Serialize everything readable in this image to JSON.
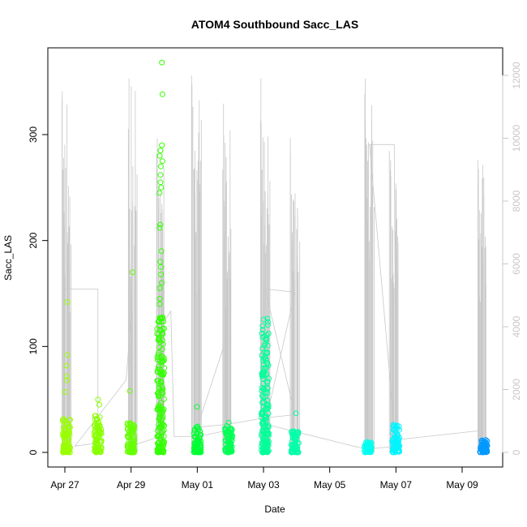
{
  "chart_data": {
    "type": "scatter",
    "title": "ATOM4 Southbound Sacc_LAS",
    "xlabel": "Date",
    "ylabel": "Sacc_LAS",
    "x_ticks": [
      "Apr 27",
      "Apr 29",
      "May 01",
      "May 03",
      "May 05",
      "May 07",
      "May 09"
    ],
    "y_ticks": [
      0,
      100,
      200,
      300
    ],
    "y2_ticks": [
      0,
      2000,
      4000,
      6000,
      8000,
      10000,
      12000
    ],
    "xlim": [
      "2023-04-26",
      "2023-05-10"
    ],
    "ylim": [
      0,
      375
    ],
    "y2lim": [
      0,
      12500
    ],
    "grid": false,
    "colors": {
      "line": "#c8c8c8",
      "right_axis": "#c8c8c8",
      "clusters": [
        "#99ff00",
        "#7cff00",
        "#33ff00",
        "#00ff33",
        "#00ff99",
        "#00ff99",
        "#00ffee",
        "#00ffee",
        "#0099ff"
      ]
    },
    "series": [
      {
        "kind": "points",
        "axis": "left",
        "clusters": [
          {
            "day": 27.05,
            "color": "#99ff00",
            "max": 32,
            "outliers": [
              142,
              92,
              82,
              72,
              68,
              57
            ]
          },
          {
            "day": 28.0,
            "color": "#88ff00",
            "max": 36,
            "outliers": [
              50,
              45
            ]
          },
          {
            "day": 29.0,
            "color": "#66ff00",
            "max": 28,
            "outliers": [
              170,
              58
            ]
          },
          {
            "day": 29.9,
            "color": "#33ff00",
            "max": 130,
            "outliers": [
              368,
              338,
              290,
              285,
              280,
              275,
              270,
              262,
              255,
              250,
              245,
              215,
              212,
              190,
              180,
              175,
              168,
              160,
              155,
              145,
              140
            ]
          },
          {
            "day": 31.0,
            "color": "#00ff33",
            "max": 25,
            "outliers": [
              43
            ]
          },
          {
            "day": 31.95,
            "color": "#00ff55",
            "max": 25,
            "outliers": [
              28
            ]
          },
          {
            "day": 33.05,
            "color": "#00ff99",
            "max": 128,
            "outliers": []
          },
          {
            "day": 33.95,
            "color": "#00ffaa",
            "max": 20,
            "outliers": [
              37
            ]
          },
          {
            "day": 36.15,
            "color": "#00ffee",
            "max": 10,
            "outliers": []
          },
          {
            "day": 37.0,
            "color": "#00f5ff",
            "max": 27,
            "outliers": []
          },
          {
            "day": 39.65,
            "color": "#0099ff",
            "max": 12,
            "outliers": []
          }
        ]
      },
      {
        "kind": "spikes",
        "axis": "right",
        "bursts": [
          {
            "day": 27.05,
            "peaks": [
              11500,
              11300,
              9000,
              7200
            ]
          },
          {
            "day": 29.05,
            "peaks": [
              11900,
              10300,
              9800,
              6000
            ]
          },
          {
            "day": 29.9,
            "peaks": [
              10000,
              9500,
              9000,
              8500
            ]
          },
          {
            "day": 30.98,
            "peaks": [
              12000,
              11700,
              11000,
              9000
            ]
          },
          {
            "day": 31.9,
            "peaks": [
              11100,
              10100,
              9000,
              8000,
              7000
            ]
          },
          {
            "day": 33.05,
            "peaks": [
              11900,
              10600,
              10500,
              9000,
              7500
            ]
          },
          {
            "day": 33.95,
            "peaks": [
              10000,
              9500,
              8200,
              7000
            ]
          },
          {
            "day": 36.2,
            "peaks": [
              11900,
              11400,
              10500,
              10000,
              9800
            ]
          },
          {
            "day": 36.95,
            "peaks": [
              9600,
              9300,
              9000,
              8800
            ]
          },
          {
            "day": 39.6,
            "peaks": [
              9300,
              9000,
              8800,
              8500
            ]
          }
        ],
        "connectors": [
          [
            26.95,
            200
          ],
          [
            27.0,
            5200
          ],
          [
            27.5,
            5200
          ],
          [
            28.0,
            5200
          ],
          [
            28.0,
            300
          ],
          [
            27.3,
            200
          ],
          [
            28.85,
            2300
          ],
          [
            29.0,
            4300
          ],
          [
            29.0,
            200
          ],
          [
            29.85,
            500
          ],
          [
            29.9,
            4000
          ],
          [
            30.2,
            4500
          ],
          [
            30.3,
            500
          ],
          [
            31.0,
            500
          ],
          [
            31.9,
            700
          ],
          [
            31.9,
            3700
          ],
          [
            31.0,
            800
          ],
          [
            31.95,
            900
          ],
          [
            33.05,
            1100
          ],
          [
            33.95,
            1200
          ],
          [
            33.05,
            5200
          ],
          [
            33.95,
            5100
          ],
          [
            33.05,
            900
          ],
          [
            36.1,
            100
          ],
          [
            37.0,
            200
          ],
          [
            36.2,
            9800
          ],
          [
            36.95,
            9800
          ],
          [
            37.0,
            400
          ],
          [
            39.6,
            700
          ]
        ]
      }
    ]
  }
}
